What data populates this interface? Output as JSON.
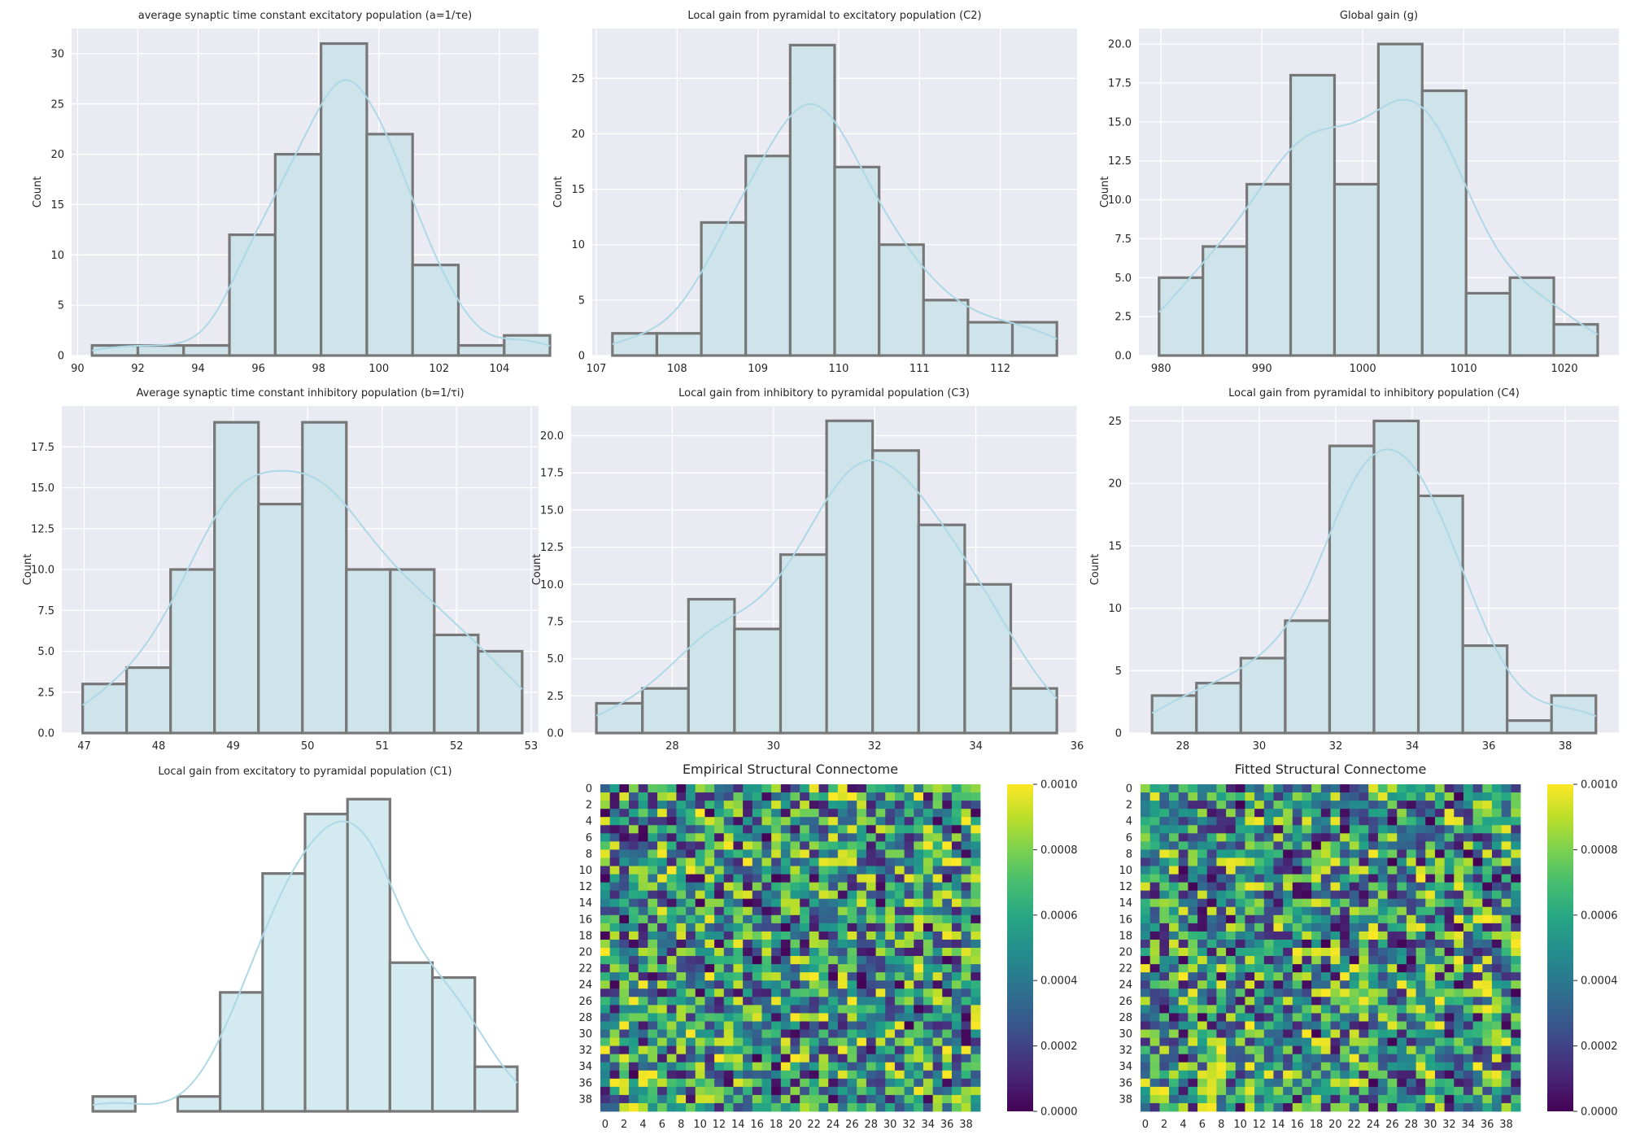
{
  "chart_data": [
    {
      "type": "histogram",
      "title": "average synaptic time constant excitatory population (a=1/τe)",
      "ylabel": "Count",
      "xlim": [
        89.8,
        105.3
      ],
      "ylim": [
        0,
        32.5
      ],
      "xticks": [
        "90",
        "92",
        "94",
        "96",
        "98",
        "100",
        "102",
        "104"
      ],
      "yticks": [
        "0",
        "5",
        "10",
        "15",
        "20",
        "25",
        "30"
      ],
      "bin_edges": [
        90.48,
        92.0,
        93.52,
        95.04,
        96.56,
        98.08,
        99.6,
        101.12,
        102.64,
        104.16,
        105.68
      ],
      "counts": [
        1,
        1,
        1,
        12,
        20,
        31,
        22,
        9,
        1,
        2
      ],
      "kde_visible": true,
      "grid": true
    },
    {
      "type": "histogram",
      "title": "Local gain from pyramidal to excitatory population (C2)",
      "ylabel": "Count",
      "xlim": [
        106.95,
        112.95
      ],
      "ylim": [
        0,
        29.5
      ],
      "xticks": [
        "107",
        "108",
        "109",
        "110",
        "111",
        "112"
      ],
      "yticks": [
        "0",
        "5",
        "10",
        "15",
        "20",
        "25"
      ],
      "bin_edges": [
        107.2,
        107.75,
        108.3,
        108.85,
        109.4,
        109.95,
        110.5,
        111.05,
        111.6,
        112.15,
        112.7
      ],
      "counts": [
        2,
        2,
        12,
        18,
        28,
        17,
        10,
        5,
        3,
        3
      ],
      "kde_visible": true,
      "grid": true
    },
    {
      "type": "histogram",
      "title": "Global gain (g)",
      "ylabel": "Count",
      "xlim": [
        977.8,
        1025.4
      ],
      "ylim": [
        0,
        21
      ],
      "xticks": [
        "980",
        "990",
        "1000",
        "1010",
        "1020"
      ],
      "yticks": [
        "0.0",
        "2.5",
        "5.0",
        "7.5",
        "10.0",
        "12.5",
        "15.0",
        "17.5",
        "20.0"
      ],
      "bin_edges": [
        979.8,
        984.15,
        988.5,
        992.85,
        997.2,
        1001.55,
        1005.9,
        1010.25,
        1014.6,
        1018.95,
        1023.3
      ],
      "counts": [
        5,
        7,
        11,
        18,
        11,
        20,
        17,
        4,
        5,
        2
      ],
      "kde_visible": true,
      "grid": true
    },
    {
      "type": "histogram",
      "title": "Average synaptic time constant inhibitory population (b=1/τi)",
      "ylabel": "Count",
      "xlim": [
        46.7,
        53.1
      ],
      "ylim": [
        0,
        20
      ],
      "xticks": [
        "47",
        "48",
        "49",
        "50",
        "51",
        "52",
        "53"
      ],
      "yticks": [
        "0.0",
        "2.5",
        "5.0",
        "7.5",
        "10.0",
        "12.5",
        "15.0",
        "17.5"
      ],
      "bin_edges": [
        46.98,
        47.57,
        48.16,
        48.75,
        49.34,
        49.93,
        50.52,
        51.11,
        51.7,
        52.29,
        52.88
      ],
      "counts": [
        3,
        4,
        10,
        19,
        14,
        19,
        10,
        10,
        6,
        5
      ],
      "kde_visible": true,
      "grid": true
    },
    {
      "type": "histogram",
      "title": "Local gain from inhibitory to pyramidal population (C3)",
      "ylabel": "Count",
      "xlim": [
        26.0,
        36.0
      ],
      "ylim": [
        0,
        22
      ],
      "xticks": [
        "28",
        "30",
        "32",
        "34",
        "36"
      ],
      "yticks": [
        "0.0",
        "2.5",
        "5.0",
        "7.5",
        "10.0",
        "12.5",
        "15.0",
        "17.5",
        "20.0"
      ],
      "bin_edges": [
        26.5,
        27.41,
        28.32,
        29.23,
        30.14,
        31.05,
        31.96,
        32.87,
        33.78,
        34.69,
        35.6
      ],
      "counts": [
        2,
        3,
        9,
        7,
        12,
        21,
        19,
        14,
        10,
        3
      ],
      "kde_visible": true,
      "grid": true
    },
    {
      "type": "histogram",
      "title": "Local gain from pyramidal to inhibitory population (C4)",
      "ylabel": "Count",
      "xlim": [
        26.6,
        39.4
      ],
      "ylim": [
        0,
        26.2
      ],
      "xticks": [
        "28",
        "30",
        "32",
        "34",
        "36",
        "38"
      ],
      "yticks": [
        "0",
        "5",
        "10",
        "15",
        "20",
        "25"
      ],
      "bin_edges": [
        27.2,
        28.36,
        29.52,
        30.68,
        31.84,
        33.0,
        34.16,
        35.32,
        36.48,
        37.64,
        38.8
      ],
      "counts": [
        3,
        4,
        6,
        9,
        23,
        25,
        19,
        7,
        1,
        3
      ],
      "kde_visible": true,
      "grid": true
    },
    {
      "type": "histogram",
      "title": "Local gain from excitatory to pyramidal population (C1)",
      "axes_visible": false,
      "bin_edges": [
        0,
        1,
        2,
        3,
        4,
        5,
        6,
        7,
        8,
        9,
        10
      ],
      "counts": [
        1,
        0,
        1,
        8,
        16,
        20,
        21,
        10,
        9,
        3
      ],
      "ylim": [
        0,
        22
      ],
      "kde_visible": true,
      "grid": false
    },
    {
      "type": "heatmap",
      "title": "Empirical Structural Connectome",
      "rows": 40,
      "cols": 40,
      "tick_labels": [
        "0",
        "2",
        "4",
        "6",
        "8",
        "10",
        "12",
        "14",
        "16",
        "18",
        "20",
        "22",
        "24",
        "26",
        "28",
        "30",
        "32",
        "34",
        "36",
        "38"
      ],
      "value_range": [
        0,
        0.001
      ],
      "colorbar_ticks": [
        "0.0000",
        "0.0002",
        "0.0004",
        "0.0006",
        "0.0008",
        "0.0010"
      ],
      "colormap": "viridis",
      "seed": 7919
    },
    {
      "type": "heatmap",
      "title": "Fitted Structural Connectome",
      "rows": 40,
      "cols": 40,
      "tick_labels": [
        "0",
        "2",
        "4",
        "6",
        "8",
        "10",
        "12",
        "14",
        "16",
        "18",
        "20",
        "22",
        "24",
        "26",
        "28",
        "30",
        "32",
        "34",
        "36",
        "38"
      ],
      "value_range": [
        0,
        0.001
      ],
      "colorbar_ticks": [
        "0.0000",
        "0.0002",
        "0.0004",
        "0.0006",
        "0.0008",
        "0.0010"
      ],
      "colormap": "viridis",
      "seed": 104729
    }
  ],
  "style": {
    "axes_bg": "#eaeaf2",
    "grid_color": "#ffffff",
    "bar_fill": "#cfe3ea",
    "bar_fill_noaxes": "#d3eaf0",
    "bar_edge": "#777777",
    "kde_color": "#add8e6",
    "text_color": "#262626"
  }
}
